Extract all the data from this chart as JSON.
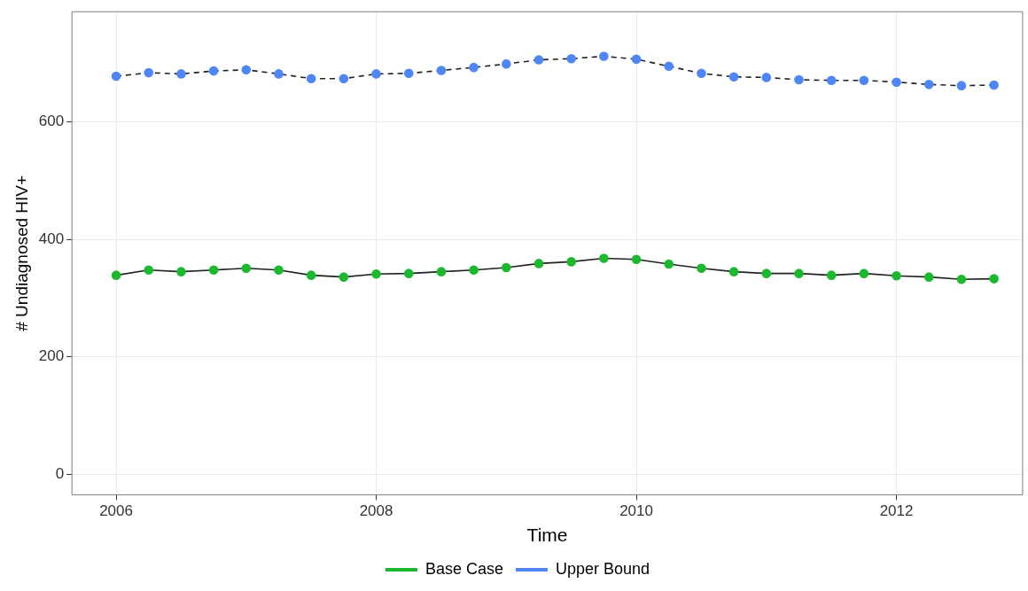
{
  "chart_data": {
    "type": "line",
    "xlabel": "Time",
    "ylabel": "# Undiagnosed HIV+",
    "x": [
      2006,
      2006.25,
      2006.5,
      2006.75,
      2007,
      2007.25,
      2007.5,
      2007.75,
      2008,
      2008.25,
      2008.5,
      2008.75,
      2009,
      2009.25,
      2009.5,
      2009.75,
      2010,
      2010.25,
      2010.5,
      2010.75,
      2011,
      2011.25,
      2011.5,
      2011.75,
      2012,
      2012.25,
      2012.5,
      2012.75
    ],
    "series": [
      {
        "name": "Base Case",
        "color": "#1cb82e",
        "line_style": "solid",
        "values": [
          339,
          348,
          345,
          348,
          351,
          348,
          339,
          336,
          341,
          342,
          345,
          348,
          352,
          359,
          362,
          368,
          366,
          358,
          351,
          345,
          342,
          342,
          339,
          342,
          338,
          336,
          332,
          333
        ]
      },
      {
        "name": "Upper Bound",
        "color": "#4f86f7",
        "line_style": "dashed",
        "values": [
          678,
          684,
          682,
          687,
          689,
          682,
          674,
          674,
          682,
          683,
          688,
          693,
          699,
          706,
          708,
          712,
          707,
          695,
          683,
          677,
          676,
          672,
          671,
          671,
          668,
          664,
          662,
          663
        ]
      }
    ],
    "xlim": [
      2005.66,
      2012.97
    ],
    "xticks": [
      2006,
      2008,
      2010,
      2012
    ],
    "ylim": [
      -35,
      788
    ],
    "yticks": [
      0,
      200,
      400,
      600
    ],
    "grid": true,
    "legend": "bottom",
    "marker": "circle"
  }
}
